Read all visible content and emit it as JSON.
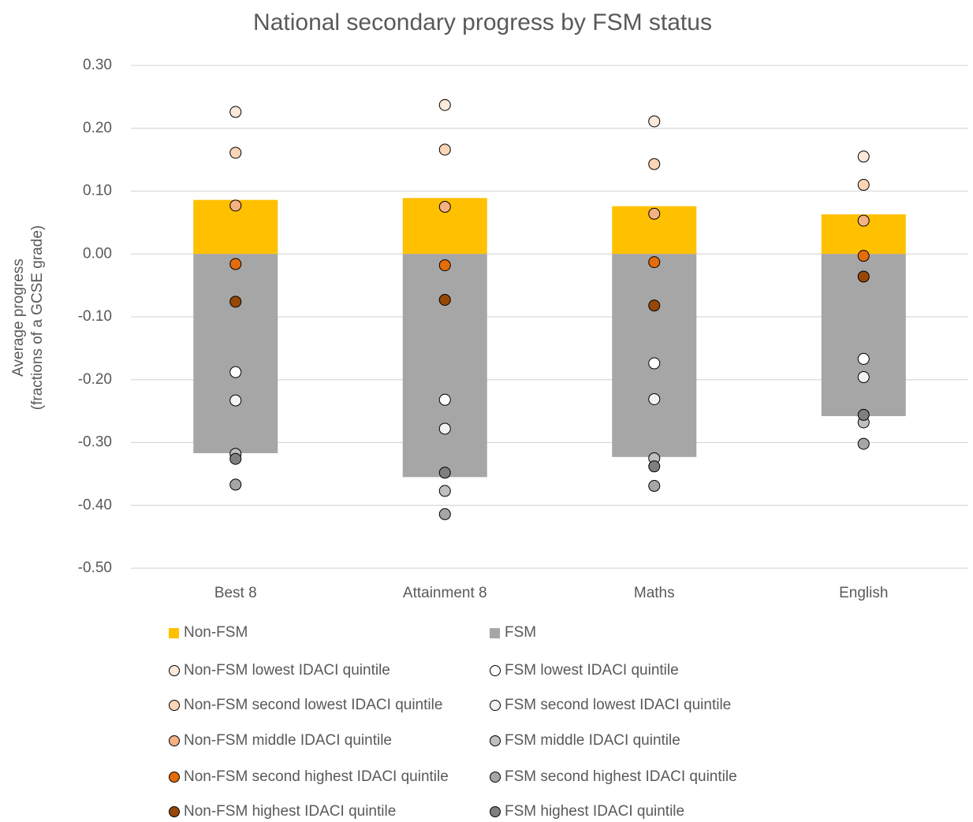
{
  "chart_data": {
    "type": "bar",
    "title": "National secondary progress by FSM status",
    "ylabel": [
      "Average progress",
      "(fractions of a GCSE grade)"
    ],
    "categories": [
      "Best 8",
      "Attainment 8",
      "Maths",
      "English"
    ],
    "ylim": [
      -0.5,
      0.3
    ],
    "yticks": [
      {
        "value": 0.3,
        "label": "0.30"
      },
      {
        "value": 0.2,
        "label": "0.20"
      },
      {
        "value": 0.1,
        "label": "0.10"
      },
      {
        "value": 0,
        "label": "0.00"
      },
      {
        "value": -0.1,
        "label": "-0.10"
      },
      {
        "value": -0.2,
        "label": "-0.20"
      },
      {
        "value": -0.3,
        "label": "-0.30"
      },
      {
        "value": -0.4,
        "label": "-0.40"
      },
      {
        "value": -0.5,
        "label": "-0.50"
      }
    ],
    "grid": true,
    "series": [
      {
        "name": "Non-FSM",
        "type": "bar",
        "color": "#ffc000",
        "values": [
          0.086,
          0.089,
          0.076,
          0.063
        ]
      },
      {
        "name": "FSM",
        "type": "bar",
        "color": "#a6a6a6",
        "values": [
          -0.317,
          -0.355,
          -0.323,
          -0.258
        ]
      },
      {
        "name": "Non-FSM lowest IDACI quintile",
        "type": "scatter",
        "color": "#fde9d9",
        "values": [
          0.226,
          0.237,
          0.211,
          0.155
        ]
      },
      {
        "name": "FSM lowest IDACI quintile",
        "type": "scatter",
        "color": "#ffffff",
        "values": [
          -0.188,
          -0.232,
          -0.174,
          -0.167
        ]
      },
      {
        "name": "Non-FSM second lowest IDACI quintile",
        "type": "scatter",
        "color": "#fbd5b5",
        "values": [
          0.161,
          0.166,
          0.143,
          0.11
        ]
      },
      {
        "name": "FSM second lowest IDACI quintile",
        "type": "scatter",
        "color": "#f2f2f2",
        "values": [
          -0.233,
          -0.278,
          -0.231,
          -0.196
        ]
      },
      {
        "name": "Non-FSM middle IDACI quintile",
        "type": "scatter",
        "color": "#f4b183",
        "values": [
          0.077,
          0.075,
          0.064,
          0.053
        ]
      },
      {
        "name": "FSM middle IDACI quintile",
        "type": "scatter",
        "color": "#bfbfbf",
        "values": [
          -0.318,
          -0.377,
          -0.325,
          -0.268
        ]
      },
      {
        "name": "Non-FSM second highest IDACI quintile",
        "type": "scatter",
        "color": "#e46c0a",
        "values": [
          -0.016,
          -0.018,
          -0.013,
          -0.003
        ]
      },
      {
        "name": "FSM second highest IDACI quintile",
        "type": "scatter",
        "color": "#a6a6a6",
        "values": [
          -0.367,
          -0.414,
          -0.369,
          -0.302
        ]
      },
      {
        "name": "Non-FSM highest IDACI quintile",
        "type": "scatter",
        "color": "#974706",
        "values": [
          -0.076,
          -0.073,
          -0.082,
          -0.036
        ]
      },
      {
        "name": "FSM highest IDACI quintile",
        "type": "scatter",
        "color": "#7f7f7f",
        "values": [
          -0.326,
          -0.348,
          -0.338,
          -0.256
        ]
      }
    ]
  }
}
